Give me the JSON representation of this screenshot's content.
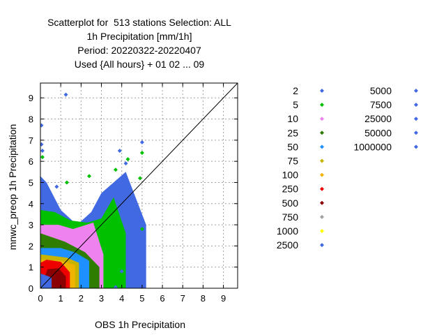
{
  "chart_data": {
    "type": "scatter",
    "title_lines": [
      "Scatterplot for  513 stations Selection: ALL",
      "1h Precipitation [mm/1h]",
      "Period: 20220322-20220407",
      "Used {All hours} + 01 02 ... 09"
    ],
    "xlabel": "OBS 1h Precipitation",
    "ylabel": "mnwc_preop 1h Precipitation",
    "xlim": [
      0,
      9.7
    ],
    "ylim": [
      0,
      9.7
    ],
    "x_ticks": [
      0,
      1,
      2,
      3,
      4,
      5,
      6,
      7,
      8,
      9
    ],
    "y_ticks": [
      0,
      1,
      2,
      3,
      4,
      5,
      6,
      7,
      8,
      9
    ],
    "grid": true,
    "diagonal": true,
    "legend_placement": "right",
    "legend": [
      {
        "label": "2",
        "color": "#4169e1"
      },
      {
        "label": "5",
        "color": "#00c000"
      },
      {
        "label": "10",
        "color": "#ee82ee"
      },
      {
        "label": "25",
        "color": "#2e7d00"
      },
      {
        "label": "50",
        "color": "#1e90ff"
      },
      {
        "label": "75",
        "color": "#c8b400"
      },
      {
        "label": "100",
        "color": "#f0b400"
      },
      {
        "label": "250",
        "color": "#ee0000"
      },
      {
        "label": "500",
        "color": "#8b0000"
      },
      {
        "label": "750",
        "color": "#a0a0a0"
      },
      {
        "label": "1000",
        "color": "#ffff00"
      },
      {
        "label": "2500",
        "color": "#4169e1"
      },
      {
        "label": "5000",
        "color": "#4169e1"
      },
      {
        "label": "7500",
        "color": "#4169e1"
      },
      {
        "label": "25000",
        "color": "#4169e1"
      },
      {
        "label": "50000",
        "color": "#4169e1"
      },
      {
        "label": "1000000",
        "color": "#4169e1"
      }
    ],
    "regions": [
      {
        "threshold": "2",
        "color": "#4169e1",
        "poly": [
          [
            0,
            0
          ],
          [
            5.2,
            0
          ],
          [
            5.2,
            3
          ],
          [
            4.2,
            5.5
          ],
          [
            3,
            4.5
          ],
          [
            2.5,
            3.6
          ],
          [
            1.8,
            3
          ],
          [
            1,
            3.7
          ],
          [
            0.3,
            5
          ],
          [
            0,
            5.3
          ]
        ]
      },
      {
        "threshold": "5",
        "color": "#00c000",
        "poly": [
          [
            0,
            0
          ],
          [
            4.2,
            0
          ],
          [
            4.2,
            2.6
          ],
          [
            3.6,
            4.3
          ],
          [
            3,
            3.3
          ],
          [
            2.3,
            3.1
          ],
          [
            1.5,
            3.2
          ],
          [
            0.7,
            3.6
          ],
          [
            0,
            3.7
          ]
        ]
      },
      {
        "threshold": "10",
        "color": "#ee82ee",
        "poly": [
          [
            0,
            0
          ],
          [
            3.1,
            0
          ],
          [
            3.1,
            1.6
          ],
          [
            2.6,
            3.1
          ],
          [
            1.6,
            2.8
          ],
          [
            0.9,
            3.0
          ],
          [
            0,
            3.0
          ]
        ]
      },
      {
        "threshold": "25",
        "color": "#2e7d00",
        "poly": [
          [
            0,
            0
          ],
          [
            2.9,
            0
          ],
          [
            2.9,
            1.0
          ],
          [
            2.2,
            1.7
          ],
          [
            1.2,
            2.2
          ],
          [
            0,
            2.6
          ]
        ]
      },
      {
        "threshold": "50",
        "color": "#1e90ff",
        "poly": [
          [
            0,
            0
          ],
          [
            2.4,
            0
          ],
          [
            2.4,
            1.3
          ],
          [
            1.7,
            1.7
          ],
          [
            1.0,
            1.9
          ],
          [
            0,
            1.9
          ]
        ]
      },
      {
        "threshold": "75",
        "color": "#c8b400",
        "poly": [
          [
            0,
            0
          ],
          [
            1.9,
            0
          ],
          [
            1.9,
            1.2
          ],
          [
            1.3,
            1.45
          ],
          [
            0,
            1.6
          ]
        ]
      },
      {
        "threshold": "100",
        "color": "#f0b400",
        "poly": [
          [
            0,
            0
          ],
          [
            1.7,
            0
          ],
          [
            1.7,
            1.1
          ],
          [
            1.0,
            1.3
          ],
          [
            0,
            1.35
          ]
        ]
      },
      {
        "threshold": "250",
        "color": "#ee0000",
        "poly": [
          [
            0,
            0
          ],
          [
            1.45,
            0
          ],
          [
            1.45,
            0.75
          ],
          [
            1.0,
            1.25
          ],
          [
            0.3,
            1.35
          ],
          [
            0,
            1.2
          ]
        ]
      },
      {
        "threshold": "500",
        "color": "#8b0000",
        "poly": [
          [
            0.3,
            0
          ],
          [
            1.25,
            0
          ],
          [
            1.25,
            0.55
          ],
          [
            0.9,
            0.95
          ],
          [
            0.35,
            0.9
          ],
          [
            0.2,
            0.5
          ]
        ]
      },
      {
        "threshold": "2500",
        "color": "#4169e1",
        "poly": [
          [
            0,
            0
          ],
          [
            0.55,
            0
          ],
          [
            0.55,
            0.5
          ],
          [
            0,
            0.7
          ]
        ]
      }
    ],
    "points": [
      {
        "x": 0.05,
        "y": 7.7,
        "color": "#4169e1"
      },
      {
        "x": 1.25,
        "y": 9.15,
        "color": "#4169e1"
      },
      {
        "x": 0.05,
        "y": 6.8,
        "color": "#4169e1"
      },
      {
        "x": 0.1,
        "y": 6.5,
        "color": "#4169e1"
      },
      {
        "x": 0.1,
        "y": 6.2,
        "color": "#00c000"
      },
      {
        "x": 3.9,
        "y": 6.5,
        "color": "#4169e1"
      },
      {
        "x": 4.3,
        "y": 6.1,
        "color": "#00c000"
      },
      {
        "x": 5.0,
        "y": 6.9,
        "color": "#4169e1"
      },
      {
        "x": 5.0,
        "y": 6.4,
        "color": "#00c000"
      },
      {
        "x": 4.2,
        "y": 5.9,
        "color": "#4169e1"
      },
      {
        "x": 3.7,
        "y": 5.6,
        "color": "#00c000"
      },
      {
        "x": 2.4,
        "y": 5.3,
        "color": "#00c000"
      },
      {
        "x": 1.3,
        "y": 5.0,
        "color": "#00c000"
      },
      {
        "x": 0.8,
        "y": 4.8,
        "color": "#4169e1"
      },
      {
        "x": 4.9,
        "y": 5.2,
        "color": "#00c000"
      },
      {
        "x": 4.0,
        "y": 0.8,
        "color": "#4169e1"
      },
      {
        "x": 4.3,
        "y": 1.1,
        "color": "#4169e1"
      },
      {
        "x": 3.7,
        "y": 0.05,
        "color": "#4169e1"
      },
      {
        "x": 5.0,
        "y": 2.8,
        "color": "#00c000"
      },
      {
        "x": 4.6,
        "y": 2.9,
        "color": "#4169e1"
      }
    ]
  }
}
